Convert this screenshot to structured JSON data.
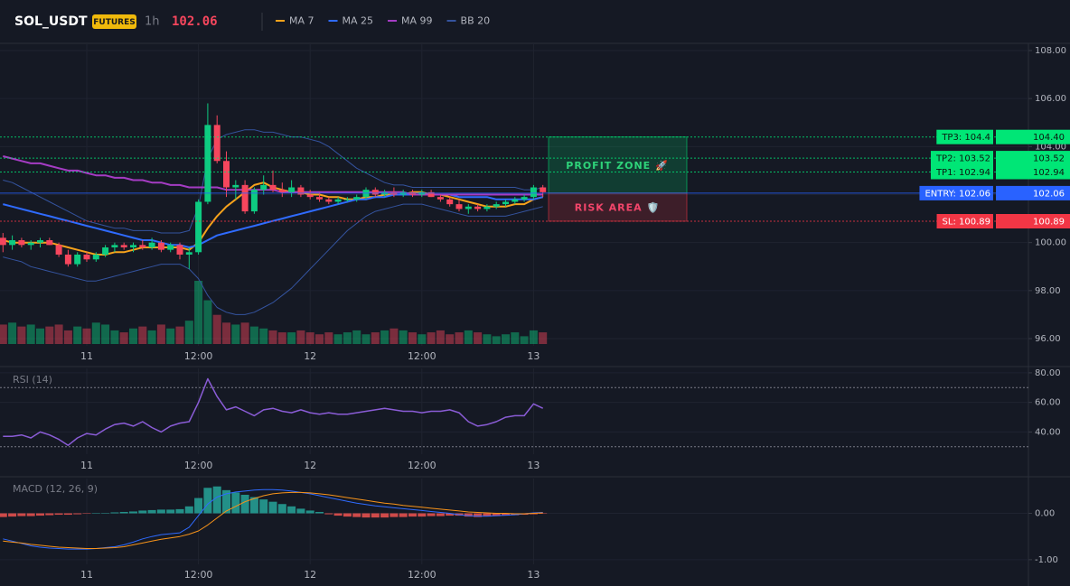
{
  "header": {
    "symbol": "SOL_USDT",
    "badge": "FUTURES",
    "interval": "1h",
    "price": "102.06"
  },
  "chart_data": [
    {
      "type": "candlestick",
      "categories": [
        null,
        null,
        null,
        null,
        null,
        null,
        null,
        null,
        null,
        "11",
        null,
        null,
        null,
        null,
        null,
        null,
        null,
        null,
        null,
        null,
        null,
        "12:00",
        null,
        null,
        null,
        null,
        null,
        null,
        null,
        null,
        null,
        null,
        null,
        "12",
        null,
        null,
        null,
        null,
        null,
        null,
        null,
        null,
        null,
        null,
        null,
        "12:00",
        null,
        null,
        null,
        null,
        null,
        null,
        null,
        null,
        null,
        null,
        null,
        "13",
        null
      ],
      "open": [
        100.2,
        99.9,
        100.1,
        99.9,
        100.0,
        100.1,
        99.9,
        99.5,
        99.1,
        99.5,
        99.3,
        99.5,
        99.8,
        99.9,
        99.8,
        99.9,
        99.8,
        100.0,
        99.7,
        99.9,
        99.5,
        99.6,
        101.7,
        104.9,
        103.4,
        102.3,
        102.4,
        101.3,
        102.2,
        102.4,
        102.2,
        102.1,
        102.3,
        102.0,
        101.9,
        101.8,
        101.7,
        101.8,
        101.8,
        101.9,
        102.2,
        102.0,
        102.1,
        102.0,
        102.1,
        102.0,
        102.1,
        101.9,
        101.8,
        101.6,
        101.4,
        101.5,
        101.4,
        101.5,
        101.6,
        101.7,
        101.8,
        101.9,
        102.3
      ],
      "high": [
        100.4,
        100.3,
        100.2,
        100.1,
        100.2,
        100.2,
        100.0,
        99.7,
        99.6,
        99.6,
        99.6,
        99.9,
        100.0,
        100.0,
        100.0,
        100.1,
        100.2,
        100.1,
        100.0,
        100.0,
        99.8,
        101.8,
        105.8,
        105.3,
        103.8,
        102.6,
        102.6,
        102.3,
        102.8,
        103.0,
        102.5,
        102.6,
        102.4,
        102.2,
        102.1,
        101.9,
        101.9,
        101.9,
        102.0,
        102.3,
        102.3,
        102.2,
        102.3,
        102.2,
        102.2,
        102.2,
        102.2,
        102.0,
        101.9,
        101.8,
        101.6,
        101.6,
        101.6,
        101.7,
        101.8,
        101.9,
        102.0,
        102.4,
        102.4
      ],
      "low": [
        99.6,
        99.7,
        99.8,
        99.7,
        99.8,
        99.9,
        99.4,
        99.0,
        99.0,
        99.2,
        99.2,
        99.4,
        99.6,
        99.7,
        99.6,
        99.7,
        99.7,
        99.6,
        99.6,
        99.3,
        98.9,
        99.5,
        101.6,
        103.3,
        101.9,
        101.8,
        101.2,
        101.2,
        102.0,
        102.1,
        101.9,
        101.9,
        101.9,
        101.8,
        101.7,
        101.6,
        101.6,
        101.7,
        101.7,
        101.8,
        101.9,
        101.9,
        101.9,
        101.9,
        101.9,
        101.9,
        101.9,
        101.7,
        101.5,
        101.3,
        101.2,
        101.3,
        101.3,
        101.4,
        101.5,
        101.6,
        101.7,
        101.8,
        101.9
      ],
      "close": [
        99.9,
        100.1,
        99.9,
        100.0,
        100.1,
        99.9,
        99.5,
        99.1,
        99.5,
        99.3,
        99.5,
        99.8,
        99.9,
        99.8,
        99.9,
        99.8,
        100.0,
        99.7,
        99.9,
        99.5,
        99.6,
        101.7,
        104.9,
        103.4,
        102.3,
        102.4,
        101.3,
        102.2,
        102.4,
        102.2,
        102.1,
        102.3,
        102.0,
        101.9,
        101.8,
        101.7,
        101.8,
        101.8,
        101.9,
        102.2,
        102.0,
        102.1,
        102.0,
        102.1,
        102.0,
        102.1,
        101.9,
        101.8,
        101.6,
        101.4,
        101.5,
        101.4,
        101.5,
        101.6,
        101.7,
        101.8,
        101.9,
        102.3,
        102.1
      ],
      "volume": [
        20,
        22,
        18,
        20,
        16,
        18,
        20,
        14,
        18,
        16,
        22,
        20,
        14,
        12,
        16,
        18,
        14,
        20,
        16,
        18,
        24,
        65,
        45,
        30,
        22,
        20,
        22,
        18,
        16,
        14,
        12,
        12,
        14,
        12,
        10,
        12,
        10,
        12,
        14,
        10,
        12,
        14,
        16,
        14,
        12,
        10,
        12,
        14,
        10,
        12,
        14,
        12,
        10,
        8,
        10,
        12,
        8,
        14,
        12
      ],
      "up_color": "#0ecb81",
      "down_color": "#f6465d",
      "series": [
        {
          "name": "MA 7",
          "color": "#f7a21b",
          "values": [
            100.1,
            100.0,
            100.0,
            100.0,
            100.0,
            100.0,
            99.9,
            99.8,
            99.7,
            99.6,
            99.5,
            99.5,
            99.6,
            99.6,
            99.7,
            99.8,
            99.8,
            99.8,
            99.8,
            99.8,
            99.7,
            100.0,
            100.6,
            101.1,
            101.5,
            101.8,
            102.1,
            102.4,
            102.5,
            102.3,
            102.2,
            102.1,
            102.1,
            102.0,
            102.0,
            101.9,
            101.9,
            101.8,
            101.8,
            101.9,
            101.9,
            102.0,
            102.0,
            102.0,
            102.1,
            102.1,
            102.0,
            102.0,
            101.9,
            101.8,
            101.7,
            101.6,
            101.5,
            101.5,
            101.5,
            101.6,
            101.6,
            101.8,
            101.9
          ]
        },
        {
          "name": "MA 25",
          "color": "#2f6bff",
          "values": [
            101.6,
            101.5,
            101.4,
            101.3,
            101.2,
            101.1,
            101.0,
            100.9,
            100.8,
            100.7,
            100.6,
            100.5,
            100.4,
            100.3,
            100.2,
            100.1,
            100.1,
            100.0,
            99.9,
            99.9,
            99.8,
            99.9,
            100.1,
            100.3,
            100.4,
            100.5,
            100.6,
            100.7,
            100.8,
            100.9,
            101.0,
            101.1,
            101.2,
            101.3,
            101.4,
            101.5,
            101.6,
            101.7,
            101.8,
            101.8,
            101.9,
            101.9,
            102.0,
            102.0,
            102.0,
            102.0,
            102.0,
            102.0,
            102.0,
            101.9,
            101.9,
            101.9,
            101.9,
            101.8,
            101.8,
            101.8,
            101.8,
            101.8,
            101.9
          ]
        },
        {
          "name": "MA 99",
          "color": "#a53cc4",
          "values": [
            103.6,
            103.5,
            103.4,
            103.3,
            103.3,
            103.2,
            103.1,
            103.0,
            103.0,
            102.9,
            102.8,
            102.8,
            102.7,
            102.7,
            102.6,
            102.6,
            102.5,
            102.5,
            102.4,
            102.4,
            102.3,
            102.3,
            102.3,
            102.3,
            102.2,
            102.2,
            102.2,
            102.2,
            102.2,
            102.2,
            102.1,
            102.1,
            102.1,
            102.1,
            102.1,
            102.1,
            102.1,
            102.1,
            102.1,
            102.1,
            102.1,
            102.1,
            102.1,
            102.1,
            102.0,
            102.0,
            102.0,
            102.0,
            102.0,
            102.0,
            102.0,
            102.0,
            102.0,
            102.0,
            102.0,
            102.0,
            102.0,
            102.0,
            102.0
          ]
        },
        {
          "name": "BB 20",
          "color": "#34539e",
          "values": [
            102.6,
            102.5,
            102.3,
            102.1,
            101.9,
            101.7,
            101.5,
            101.3,
            101.1,
            100.9,
            100.8,
            100.7,
            100.6,
            100.6,
            100.5,
            100.5,
            100.5,
            100.4,
            100.4,
            100.4,
            100.5,
            101.5,
            103.5,
            104.3,
            104.5,
            104.6,
            104.7,
            104.7,
            104.6,
            104.6,
            104.5,
            104.4,
            104.4,
            104.3,
            104.2,
            104.0,
            103.7,
            103.4,
            103.1,
            102.9,
            102.7,
            102.5,
            102.4,
            102.4,
            102.3,
            102.3,
            102.3,
            102.3,
            102.3,
            102.3,
            102.3,
            102.3,
            102.3,
            102.3,
            102.3,
            102.3,
            102.2,
            102.2,
            102.3
          ],
          "lower": [
            99.4,
            99.3,
            99.2,
            99.0,
            98.9,
            98.8,
            98.7,
            98.6,
            98.5,
            98.4,
            98.4,
            98.5,
            98.6,
            98.7,
            98.8,
            98.9,
            99.0,
            99.1,
            99.1,
            99.1,
            98.9,
            98.5,
            97.8,
            97.3,
            97.1,
            97.0,
            97.0,
            97.1,
            97.3,
            97.5,
            97.8,
            98.1,
            98.5,
            98.9,
            99.3,
            99.7,
            100.1,
            100.5,
            100.8,
            101.1,
            101.3,
            101.4,
            101.5,
            101.6,
            101.6,
            101.6,
            101.5,
            101.4,
            101.3,
            101.2,
            101.1,
            101.1,
            101.1,
            101.1,
            101.1,
            101.2,
            101.3,
            101.4,
            101.5
          ]
        }
      ],
      "levels": [
        {
          "text": "TP3: 104.4",
          "value": 104.4,
          "value_label": "104.40",
          "color": "#00e676",
          "style": "dotted"
        },
        {
          "text": "TP2: 103.52",
          "value": 103.52,
          "value_label": "103.52",
          "color": "#00e676",
          "style": "dotted"
        },
        {
          "text": "TP1: 102.94",
          "value": 102.94,
          "value_label": "102.94",
          "color": "#00e676",
          "style": "dotted"
        },
        {
          "text": "ENTRY: 102.06",
          "value": 102.06,
          "value_label": "102.06",
          "color": "#2962ff",
          "style": "solid"
        },
        {
          "text": "SL: 100.89",
          "value": 100.89,
          "value_label": "100.89",
          "color": "#f23645",
          "style": "dotted"
        }
      ],
      "zones": [
        {
          "label": "PROFIT ZONE 🚀",
          "top": 104.4,
          "bottom": 102.06,
          "color": "#00e676",
          "text_color": "#2ed47a"
        },
        {
          "label": "RISK AREA 🛡️",
          "top": 102.06,
          "bottom": 100.89,
          "color": "#f23645",
          "text_color": "#f2456a"
        }
      ],
      "ylim": [
        95.7,
        108.3
      ],
      "yticks": [
        {
          "value": 96,
          "label": "96.00"
        },
        {
          "value": 98,
          "label": "98.00"
        },
        {
          "value": 100,
          "label": "100.00"
        },
        {
          "value": 102,
          "label": "102.00"
        },
        {
          "value": 104,
          "label": "104.00"
        },
        {
          "value": 106,
          "label": "106.00"
        },
        {
          "value": 108,
          "label": "108.00"
        }
      ],
      "grid": true
    },
    {
      "type": "line",
      "title": "RSI (14)",
      "color": "#8a5cd6",
      "values": [
        37,
        37,
        38,
        36,
        40,
        38,
        35,
        31,
        36,
        39,
        38,
        42,
        45,
        46,
        44,
        47,
        43,
        40,
        44,
        46,
        47,
        60,
        76,
        64,
        55,
        57,
        54,
        51,
        55,
        56,
        54,
        53,
        55,
        53,
        52,
        53,
        52,
        52,
        53,
        54,
        55,
        56,
        55,
        54,
        54,
        53,
        54,
        54,
        55,
        53,
        47,
        44,
        45,
        47,
        50,
        51,
        51,
        59,
        56
      ],
      "bands": [
        70,
        30
      ],
      "ylim": [
        25,
        83
      ],
      "yticks": [
        {
          "value": 40,
          "label": "40.00"
        },
        {
          "value": 60,
          "label": "60.00"
        },
        {
          "value": 80,
          "label": "80.00"
        }
      ],
      "grid": true
    },
    {
      "type": "macd",
      "title": "MACD (12, 26, 9)",
      "macd": {
        "color": "#2f6bff",
        "values": [
          -0.55,
          -0.6,
          -0.65,
          -0.7,
          -0.73,
          -0.75,
          -0.76,
          -0.77,
          -0.77,
          -0.77,
          -0.76,
          -0.74,
          -0.72,
          -0.68,
          -0.62,
          -0.55,
          -0.5,
          -0.46,
          -0.44,
          -0.42,
          -0.3,
          -0.05,
          0.2,
          0.35,
          0.42,
          0.46,
          0.48,
          0.5,
          0.51,
          0.51,
          0.5,
          0.48,
          0.45,
          0.42,
          0.38,
          0.34,
          0.3,
          0.26,
          0.22,
          0.19,
          0.16,
          0.14,
          0.12,
          0.1,
          0.08,
          0.06,
          0.04,
          0.02,
          0.0,
          -0.03,
          -0.05,
          -0.06,
          -0.06,
          -0.05,
          -0.04,
          -0.03,
          -0.01,
          0.01,
          0.02
        ]
      },
      "signal": {
        "color": "#f7931a",
        "values": [
          -0.6,
          -0.62,
          -0.64,
          -0.67,
          -0.69,
          -0.71,
          -0.73,
          -0.74,
          -0.75,
          -0.76,
          -0.76,
          -0.75,
          -0.74,
          -0.72,
          -0.68,
          -0.64,
          -0.6,
          -0.56,
          -0.53,
          -0.5,
          -0.45,
          -0.38,
          -0.25,
          -0.1,
          0.05,
          0.15,
          0.25,
          0.32,
          0.38,
          0.42,
          0.44,
          0.45,
          0.45,
          0.44,
          0.42,
          0.4,
          0.37,
          0.34,
          0.31,
          0.28,
          0.25,
          0.22,
          0.2,
          0.17,
          0.15,
          0.13,
          0.11,
          0.09,
          0.07,
          0.05,
          0.03,
          0.02,
          0.01,
          0.0,
          0.0,
          -0.01,
          -0.01,
          0.0,
          0.01
        ]
      },
      "histogram": {
        "up_color": "#26a69a",
        "down_color": "#ef5350",
        "values": [
          -0.08,
          -0.07,
          -0.06,
          -0.06,
          -0.05,
          -0.04,
          -0.03,
          -0.03,
          -0.02,
          -0.01,
          0.0,
          0.01,
          0.02,
          0.03,
          0.04,
          0.06,
          0.07,
          0.08,
          0.08,
          0.09,
          0.15,
          0.33,
          0.55,
          0.58,
          0.5,
          0.45,
          0.4,
          0.35,
          0.3,
          0.25,
          0.2,
          0.15,
          0.1,
          0.06,
          0.03,
          -0.02,
          -0.05,
          -0.07,
          -0.08,
          -0.09,
          -0.09,
          -0.09,
          -0.08,
          -0.08,
          -0.07,
          -0.07,
          -0.06,
          -0.06,
          -0.05,
          -0.05,
          -0.07,
          -0.08,
          -0.07,
          -0.06,
          -0.05,
          -0.04,
          -0.03,
          -0.02,
          -0.01
        ]
      },
      "ylim": [
        -1.1,
        0.75
      ],
      "yticks": [
        {
          "value": -1,
          "label": "-1.00"
        },
        {
          "value": 0,
          "label": "0.00"
        }
      ],
      "grid": true
    }
  ]
}
